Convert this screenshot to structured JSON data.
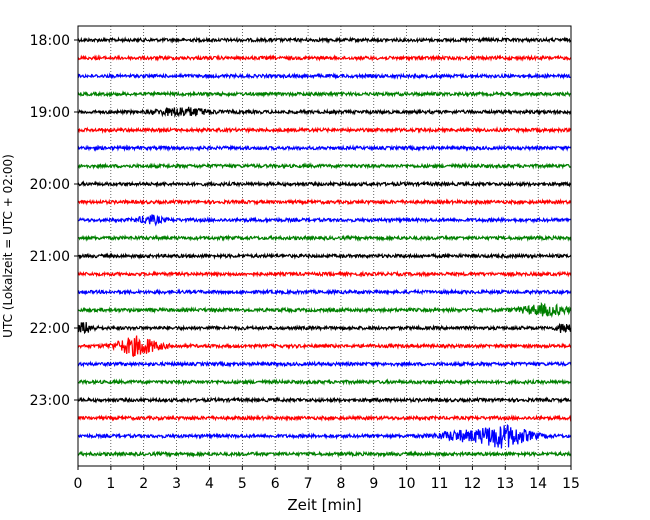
{
  "chart_data": {
    "type": "line",
    "title": "",
    "xlabel": "Zeit  [min]",
    "ylabel": "UTC (Lokalzeit = UTC + 02:00)",
    "xlim": [
      0,
      15
    ],
    "x_ticks": [
      "0",
      "1",
      "2",
      "3",
      "4",
      "5",
      "6",
      "7",
      "8",
      "9",
      "10",
      "11",
      "12",
      "13",
      "14",
      "15"
    ],
    "y_ticks": [
      "18:00",
      "19:00",
      "20:00",
      "21:00",
      "22:00",
      "23:00"
    ],
    "grid": "vertical dotted",
    "trace_interval_min": 15,
    "colors": [
      "#000000",
      "#ff0000",
      "#0000ff",
      "#008000"
    ],
    "series": [
      {
        "start": "18:00",
        "color": "#000000",
        "bursts": []
      },
      {
        "start": "18:15",
        "color": "#ff0000",
        "bursts": []
      },
      {
        "start": "18:30",
        "color": "#0000ff",
        "bursts": []
      },
      {
        "start": "18:45",
        "color": "#008000",
        "bursts": []
      },
      {
        "start": "19:00",
        "color": "#000000",
        "bursts": [
          {
            "t": 3.2,
            "w": 1.5,
            "a": 4
          }
        ]
      },
      {
        "start": "19:15",
        "color": "#ff0000",
        "bursts": []
      },
      {
        "start": "19:30",
        "color": "#0000ff",
        "bursts": []
      },
      {
        "start": "19:45",
        "color": "#008000",
        "bursts": []
      },
      {
        "start": "20:00",
        "color": "#000000",
        "bursts": []
      },
      {
        "start": "20:15",
        "color": "#ff0000",
        "bursts": []
      },
      {
        "start": "20:30",
        "color": "#0000ff",
        "bursts": [
          {
            "t": 2.2,
            "w": 0.7,
            "a": 4
          }
        ]
      },
      {
        "start": "20:45",
        "color": "#008000",
        "bursts": []
      },
      {
        "start": "21:00",
        "color": "#000000",
        "bursts": []
      },
      {
        "start": "21:15",
        "color": "#ff0000",
        "bursts": []
      },
      {
        "start": "21:30",
        "color": "#0000ff",
        "bursts": []
      },
      {
        "start": "21:45",
        "color": "#008000",
        "bursts": [
          {
            "t": 14.2,
            "w": 1.4,
            "a": 5
          }
        ]
      },
      {
        "start": "22:00",
        "color": "#000000",
        "bursts": [
          {
            "t": 0.2,
            "w": 0.5,
            "a": 5
          },
          {
            "t": 14.8,
            "w": 0.4,
            "a": 5
          }
        ]
      },
      {
        "start": "22:15",
        "color": "#ff0000",
        "bursts": [
          {
            "t": 1.8,
            "w": 1.2,
            "a": 9
          }
        ]
      },
      {
        "start": "22:30",
        "color": "#0000ff",
        "bursts": []
      },
      {
        "start": "22:45",
        "color": "#008000",
        "bursts": []
      },
      {
        "start": "23:00",
        "color": "#000000",
        "bursts": []
      },
      {
        "start": "23:15",
        "color": "#ff0000",
        "bursts": []
      },
      {
        "start": "23:30",
        "color": "#0000ff",
        "bursts": [
          {
            "t": 12.9,
            "w": 1.6,
            "a": 11
          },
          {
            "t": 11.5,
            "w": 1.2,
            "a": 4
          }
        ]
      },
      {
        "start": "23:45",
        "color": "#008000",
        "bursts": []
      }
    ]
  }
}
